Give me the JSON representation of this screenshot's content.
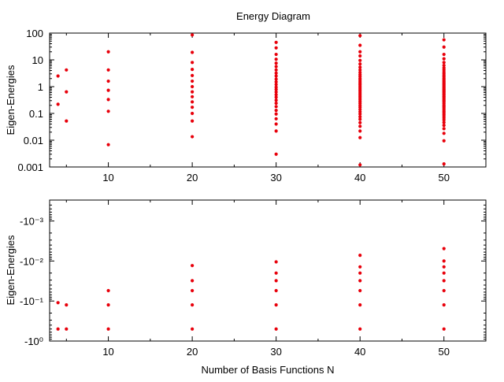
{
  "colors": {
    "series": "#e8000b",
    "axis": "#000000"
  },
  "chart_data": [
    {
      "type": "scatter",
      "title": "Energy Diagram",
      "xlabel": "",
      "ylabel": "Eigen-Energies",
      "yscale": "log",
      "xlim": [
        3,
        55
      ],
      "ylim": [
        0.001,
        100
      ],
      "xticks": [
        10,
        20,
        30,
        40,
        50
      ],
      "yticks": [
        0.001,
        0.01,
        0.1,
        1,
        10,
        100
      ],
      "ytick_labels": [
        "0.001",
        "0.01",
        "0.1",
        "1",
        "10",
        "100"
      ],
      "grid": false,
      "legend": "none",
      "points": [
        {
          "x": 4,
          "y": [
            0.22,
            2.5
          ]
        },
        {
          "x": 5,
          "y": [
            0.052,
            0.64,
            4.2
          ]
        },
        {
          "x": 10,
          "y": [
            0.0068,
            0.12,
            0.33,
            0.73,
            1.6,
            4.2,
            20
          ]
        },
        {
          "x": 20,
          "y": [
            0.0135,
            0.052,
            0.1,
            0.17,
            0.27,
            0.42,
            0.64,
            1.0,
            1.6,
            2.6,
            4.4,
            8.0,
            19,
            85
          ]
        },
        {
          "x": 30,
          "y": [
            0.003,
            0.022,
            0.04,
            0.063,
            0.095,
            0.13,
            0.18,
            0.24,
            0.31,
            0.4,
            0.5,
            0.63,
            0.78,
            0.95,
            1.2,
            1.5,
            1.9,
            2.5,
            3.2,
            4.2,
            5.6,
            7.5,
            10.5,
            16,
            28,
            45
          ]
        },
        {
          "x": 40,
          "y": [
            0.0012,
            0.0125,
            0.022,
            0.033,
            0.045,
            0.06,
            0.075,
            0.095,
            0.115,
            0.14,
            0.17,
            0.2,
            0.24,
            0.28,
            0.33,
            0.38,
            0.44,
            0.51,
            0.58,
            0.67,
            0.76,
            0.87,
            1.0,
            1.15,
            1.3,
            1.5,
            1.75,
            2.0,
            2.4,
            2.8,
            3.4,
            4.2,
            5.3,
            7.0,
            9.5,
            14,
            20,
            35,
            80
          ]
        },
        {
          "x": 50,
          "y": [
            0.0013,
            0.0095,
            0.018,
            0.027,
            0.036,
            0.046,
            0.057,
            0.068,
            0.08,
            0.093,
            0.107,
            0.122,
            0.14,
            0.16,
            0.18,
            0.2,
            0.23,
            0.26,
            0.29,
            0.32,
            0.36,
            0.4,
            0.44,
            0.49,
            0.54,
            0.6,
            0.66,
            0.73,
            0.8,
            0.88,
            0.97,
            1.07,
            1.18,
            1.3,
            1.45,
            1.6,
            1.8,
            2.0,
            2.3,
            2.6,
            3.0,
            3.5,
            4.2,
            5.0,
            6.2,
            8.0,
            11,
            16,
            30,
            56
          ]
        }
      ]
    },
    {
      "type": "scatter",
      "title": "",
      "xlabel": "Number of Basis Functions N",
      "ylabel": "Eigen-Energies",
      "yscale": "log",
      "note_y_axis": "negative values, magnitude on log axis, |E| increases downward",
      "xlim": [
        3,
        55
      ],
      "ylim": [
        -1,
        -0.0003
      ],
      "xticks": [
        10,
        20,
        30,
        40,
        50
      ],
      "yticks": [
        -0.001,
        -0.01,
        -0.1,
        -1
      ],
      "ytick_labels": [
        "-10⁻³",
        "-10⁻²",
        "-10⁻¹",
        "-10⁰"
      ],
      "grid": false,
      "legend": "none",
      "points": [
        {
          "x": 4,
          "y": [
            -0.5,
            -0.11
          ]
        },
        {
          "x": 5,
          "y": [
            -0.5,
            -0.125
          ]
        },
        {
          "x": 10,
          "y": [
            -0.5,
            -0.125,
            -0.055
          ]
        },
        {
          "x": 20,
          "y": [
            -0.5,
            -0.125,
            -0.055,
            -0.031,
            -0.013
          ]
        },
        {
          "x": 30,
          "y": [
            -0.5,
            -0.125,
            -0.055,
            -0.031,
            -0.02,
            -0.0105
          ]
        },
        {
          "x": 40,
          "y": [
            -0.5,
            -0.125,
            -0.055,
            -0.031,
            -0.02,
            -0.014,
            -0.0072
          ]
        },
        {
          "x": 50,
          "y": [
            -0.5,
            -0.125,
            -0.055,
            -0.031,
            -0.02,
            -0.014,
            -0.01,
            -0.0049
          ]
        }
      ]
    }
  ]
}
